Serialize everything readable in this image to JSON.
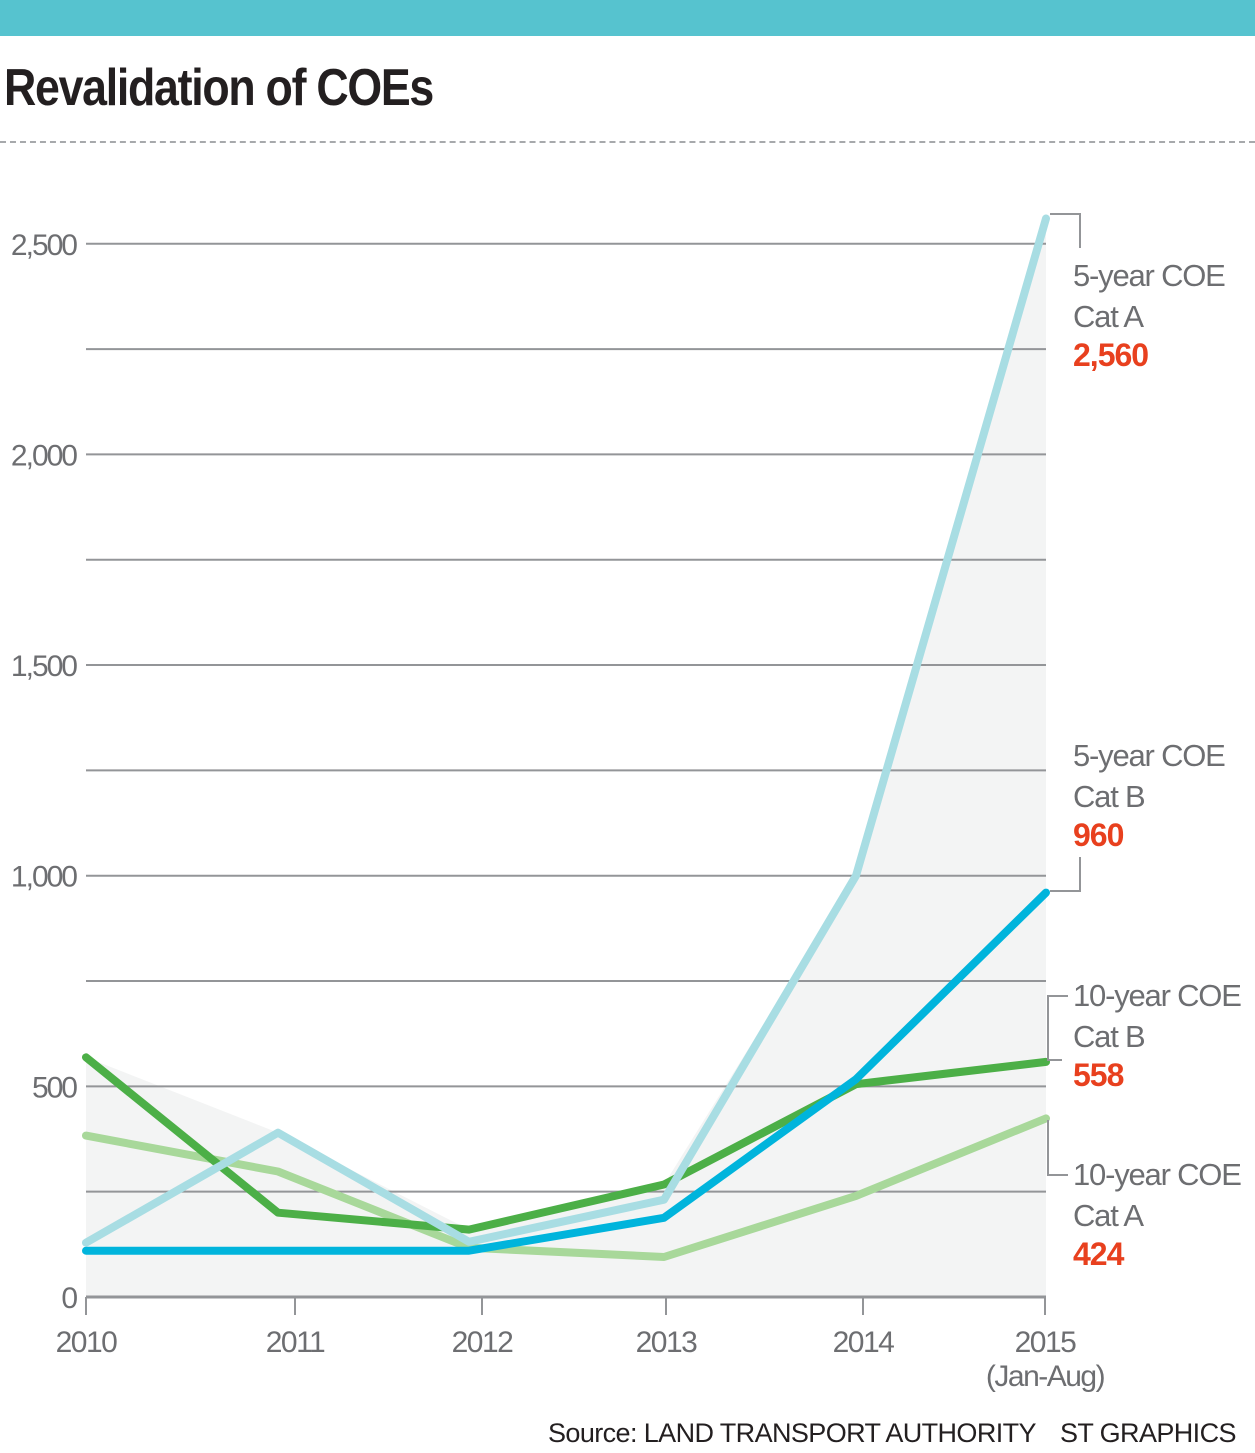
{
  "header": {
    "title": "Revalidation of COEs"
  },
  "footer": {
    "source": "Source: LAND TRANSPORT AUTHORITY",
    "credit": "ST GRAPHICS"
  },
  "colors": {
    "topbar": "#56c3cf",
    "fill": "#f3f4f4",
    "grid": "#939598",
    "highlight": "#e8401e"
  },
  "chart_data": {
    "type": "line",
    "title": "Revalidation of COEs",
    "xlabel": "",
    "ylabel": "",
    "categories": [
      "2010",
      "2011",
      "2012",
      "2013",
      "2014",
      "2015"
    ],
    "category_sublabels": [
      "",
      "",
      "",
      "",
      "",
      "(Jan-Aug)"
    ],
    "ylim": [
      0,
      2500
    ],
    "yticks": [
      0,
      500,
      1000,
      1500,
      2000,
      2500
    ],
    "ytick_labels": [
      "0",
      "500",
      "1,000",
      "1,500",
      "2,000",
      "2,500"
    ],
    "grid_step": 250,
    "grid": true,
    "legend": "direct-labels-right",
    "series": [
      {
        "name": "5-year COE Cat A",
        "line1": "5-year COE",
        "line2": "Cat A",
        "end_label": "2,560",
        "color": "#a8dde3",
        "values": [
          129,
          390,
          131,
          231,
          1000,
          2560
        ]
      },
      {
        "name": "5-year COE Cat B",
        "line1": "5-year COE",
        "line2": "Cat B",
        "end_label": "960",
        "color": "#00b4dc",
        "values": [
          110,
          110,
          110,
          188,
          517,
          960
        ]
      },
      {
        "name": "10-year COE Cat B",
        "line1": "10-year COE",
        "line2": "Cat B",
        "end_label": "558",
        "color": "#4caf47",
        "values": [
          569,
          200,
          160,
          267,
          505,
          558
        ]
      },
      {
        "name": "10-year COE Cat A",
        "line1": "10-year COE",
        "line2": "Cat A",
        "end_label": "424",
        "color": "#a8d89a",
        "values": [
          383,
          298,
          117,
          95,
          240,
          424
        ]
      }
    ]
  }
}
